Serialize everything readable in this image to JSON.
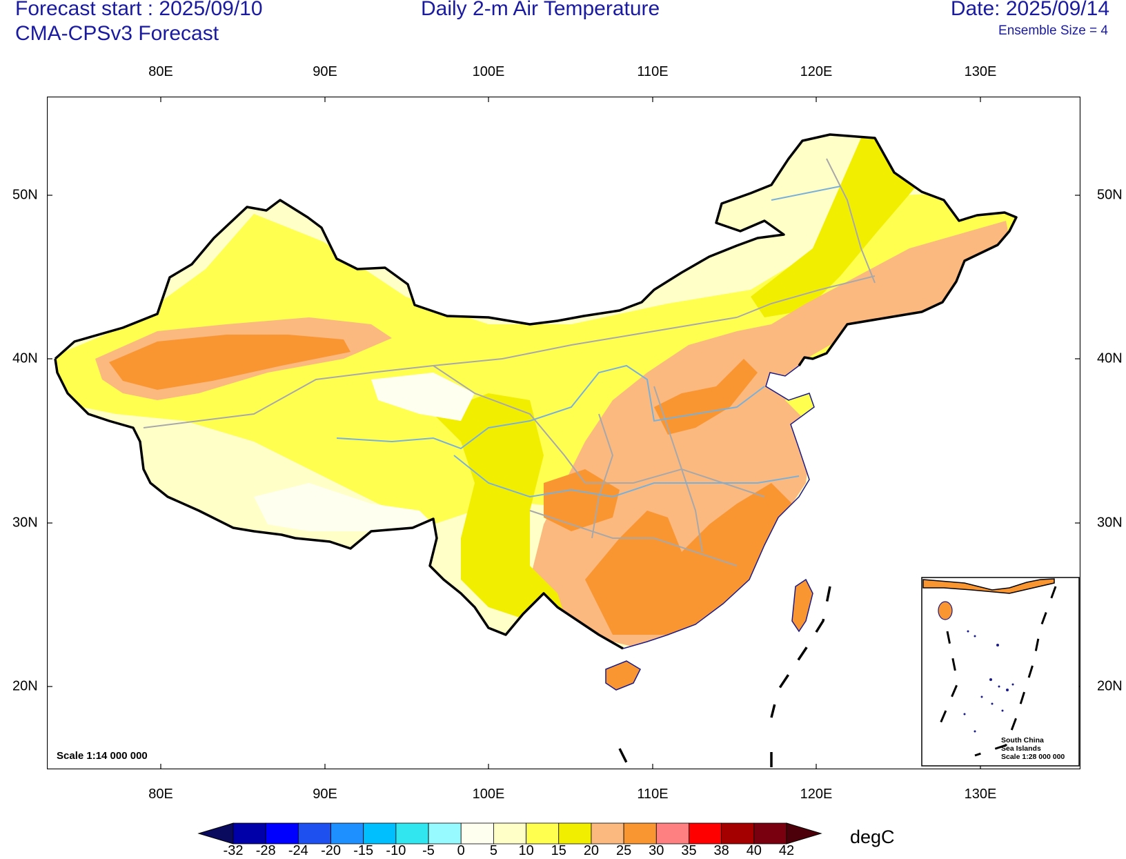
{
  "header": {
    "forecast_start": "Forecast start : 2025/09/10",
    "model": "CMA-CPSv3 Forecast",
    "title": "Daily 2-m Air Temperature",
    "date": "Date: 2025/09/14",
    "ensemble": "Ensemble Size = 4"
  },
  "axes": {
    "lon_labels": [
      "80E",
      "90E",
      "100E",
      "110E",
      "120E",
      "130E"
    ],
    "lat_labels": [
      "50N",
      "40N",
      "30N",
      "20N"
    ]
  },
  "map": {
    "scale_label": "Scale 1:14 000 000",
    "inset_label": [
      "South China",
      "Sea Islands",
      "Scale 1:28 000 000"
    ],
    "legend_colors": [
      "#fffff0",
      "#ffffc8",
      "#ffff50",
      "#f2ee00",
      "#fbb97f",
      "#fa9632"
    ]
  },
  "colorbar": {
    "labels": [
      "-32",
      "-28",
      "-24",
      "-20",
      "-15",
      "-10",
      "-5",
      "0",
      "5",
      "10",
      "15",
      "20",
      "25",
      "30",
      "35",
      "38",
      "40",
      "42"
    ],
    "colors": [
      "#0a0a5e",
      "#0000a8",
      "#0000ff",
      "#1e50f0",
      "#1e90ff",
      "#00bfff",
      "#32e6f0",
      "#96faff",
      "#fffff0",
      "#ffffc8",
      "#ffff50",
      "#f2ee00",
      "#fbb97f",
      "#fa9632",
      "#ff8080",
      "#ff0000",
      "#a50000",
      "#78000f",
      "#4b000a"
    ],
    "unit": "degC"
  }
}
